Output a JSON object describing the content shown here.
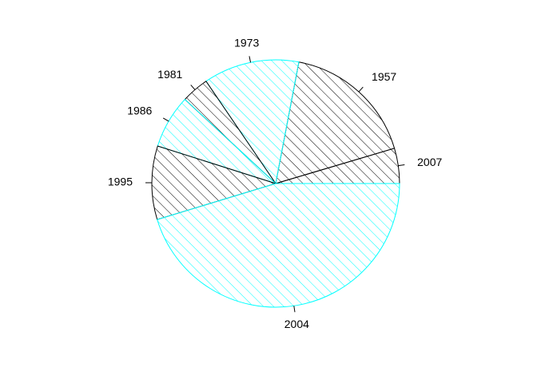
{
  "chart_data": {
    "type": "pie",
    "labels": [
      "2007",
      "1957",
      "1973",
      "1981",
      "1986",
      "1995",
      "2004"
    ],
    "values": [
      4.6,
      17.4,
      12.5,
      3.6,
      7.0,
      9.6,
      45.3
    ],
    "colors": [
      "#000000",
      "#000000",
      "#00FFFF",
      "#000000",
      "#00FFFF",
      "#000000",
      "#00FFFF"
    ],
    "fill": "hatched",
    "start_angle_deg": 0,
    "direction": "counterclockwise"
  }
}
